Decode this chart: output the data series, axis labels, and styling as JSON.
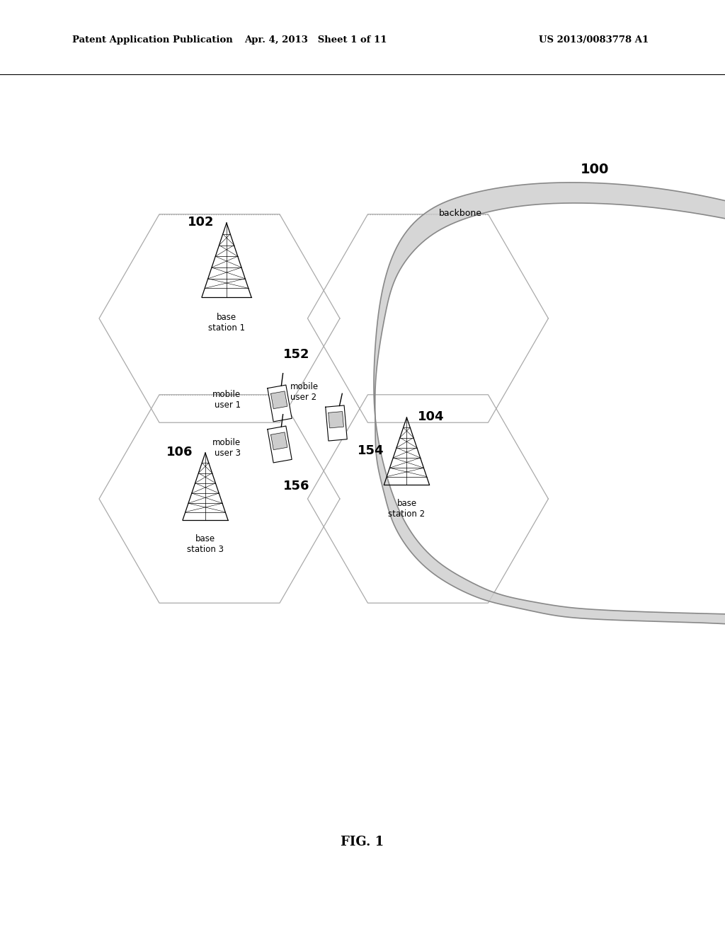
{
  "title_left": "Patent Application Publication",
  "title_mid": "Apr. 4, 2013   Sheet 1 of 11",
  "title_right": "US 2013/0083778 A1",
  "fig_label": "FIG. 1",
  "bg_color": "#ffffff",
  "hex_edge_color": "#aaaaaa",
  "hex_linewidth": 0.9,
  "label_100": "100",
  "label_backbone": "backbone",
  "label_102": "102",
  "label_bs1": "base\nstation 1",
  "label_104": "104",
  "label_bs2": "base\nstation 2",
  "label_106": "106",
  "label_bs3": "base\nstation 3",
  "label_152": "152",
  "label_mu1": "mobile\nuser 1",
  "label_154": "154",
  "label_mu2": "mobile\nuser 2",
  "label_156": "156",
  "label_mu3": "mobile\nuser 3"
}
